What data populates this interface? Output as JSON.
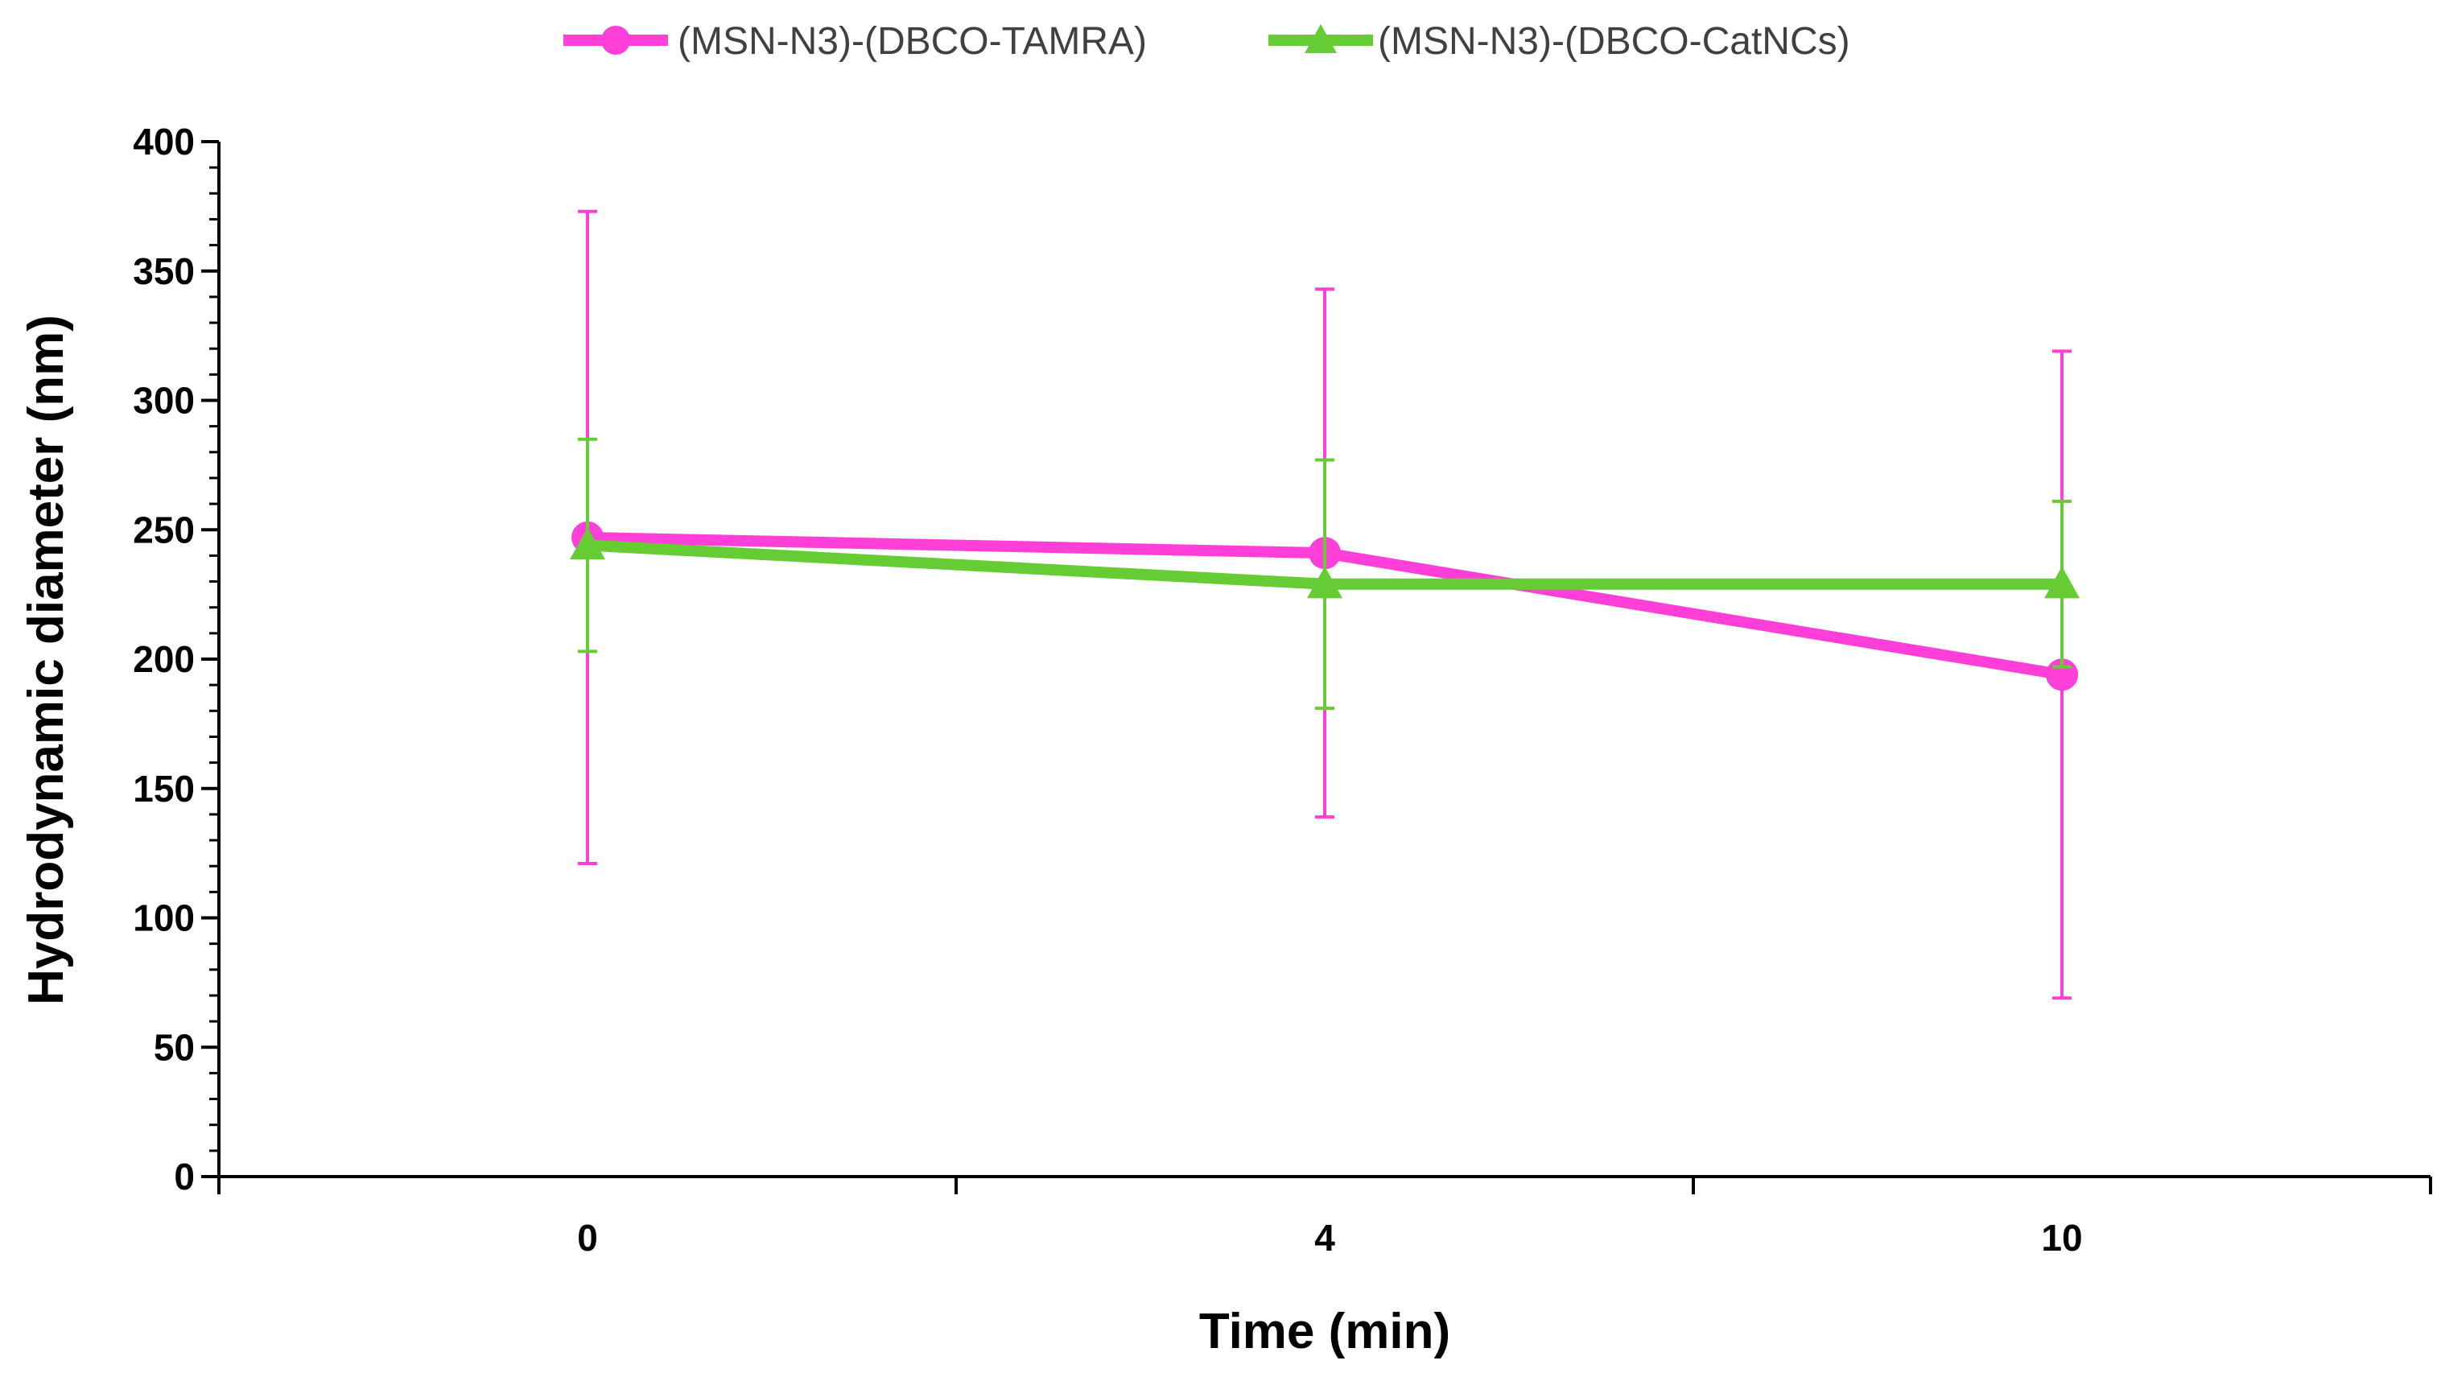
{
  "chart_data": {
    "type": "line",
    "title": "",
    "xlabel": "Time (min)",
    "ylabel": "Hydrodynamic diameter (nm)",
    "categories": [
      "0",
      "4",
      "10"
    ],
    "ylim": [
      0,
      400
    ],
    "yticks": [
      0,
      50,
      100,
      150,
      200,
      250,
      300,
      350,
      400
    ],
    "legend_position": "top-center",
    "grid": false,
    "series": [
      {
        "name": "(MSN-N3)-(DBCO-TAMRA)",
        "color": "#ff3fd8",
        "marker": "circle",
        "values": [
          247,
          241,
          194
        ],
        "error": [
          126,
          102,
          125
        ]
      },
      {
        "name": "(MSN-N3)-(DBCO-CatNCs)",
        "color": "#66cc33",
        "marker": "triangle",
        "values": [
          244,
          229,
          229
        ],
        "error": [
          41,
          48,
          32
        ]
      }
    ]
  }
}
